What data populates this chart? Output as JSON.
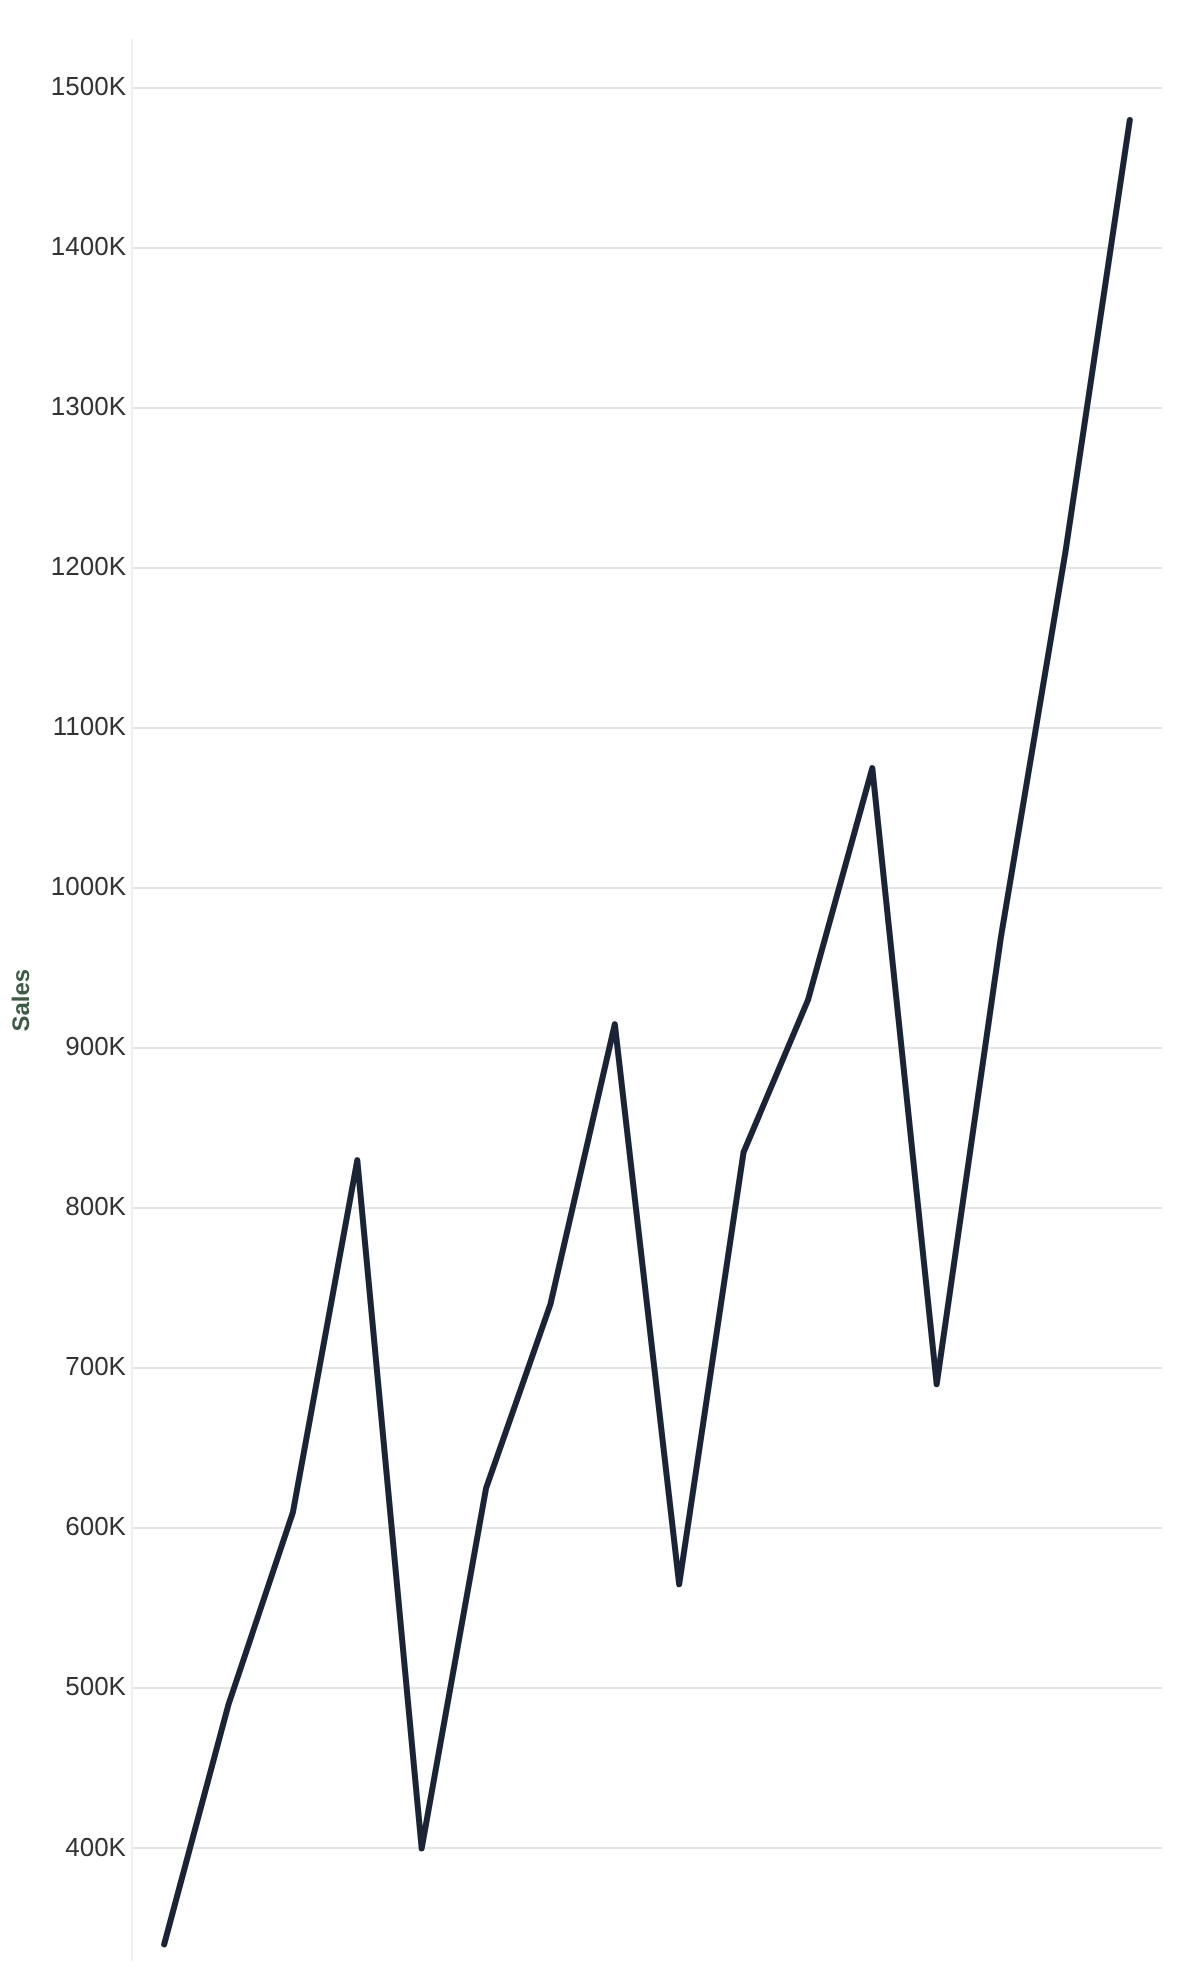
{
  "chart_data": {
    "type": "line",
    "ylabel": "Sales",
    "categories": [
      null,
      null,
      null,
      null,
      null,
      null,
      null,
      null,
      null,
      null,
      null,
      null,
      null,
      null,
      null,
      null
    ],
    "series": [
      {
        "color": "#1b2437",
        "values": [
          340000,
          490000,
          610000,
          830000,
          400000,
          625000,
          740000,
          915000,
          565000,
          835000,
          930000,
          1075000,
          690000,
          970000,
          1210000,
          1480000
        ]
      }
    ],
    "ylim": [
      330000,
      1530000
    ],
    "yticks": [
      {
        "value": 400000,
        "label": "400K"
      },
      {
        "value": 500000,
        "label": "500K"
      },
      {
        "value": 600000,
        "label": "600K"
      },
      {
        "value": 700000,
        "label": "700K"
      },
      {
        "value": 800000,
        "label": "800K"
      },
      {
        "value": 900000,
        "label": "900K"
      },
      {
        "value": 1000000,
        "label": "1000K"
      },
      {
        "value": 1100000,
        "label": "1100K"
      },
      {
        "value": 1200000,
        "label": "1200K"
      },
      {
        "value": 1300000,
        "label": "1300K"
      },
      {
        "value": 1400000,
        "label": "1400K"
      },
      {
        "value": 1500000,
        "label": "1500K"
      }
    ],
    "grid": "y",
    "legend": false,
    "marker": "none",
    "line_style": "solid",
    "tick_labels": "y"
  }
}
